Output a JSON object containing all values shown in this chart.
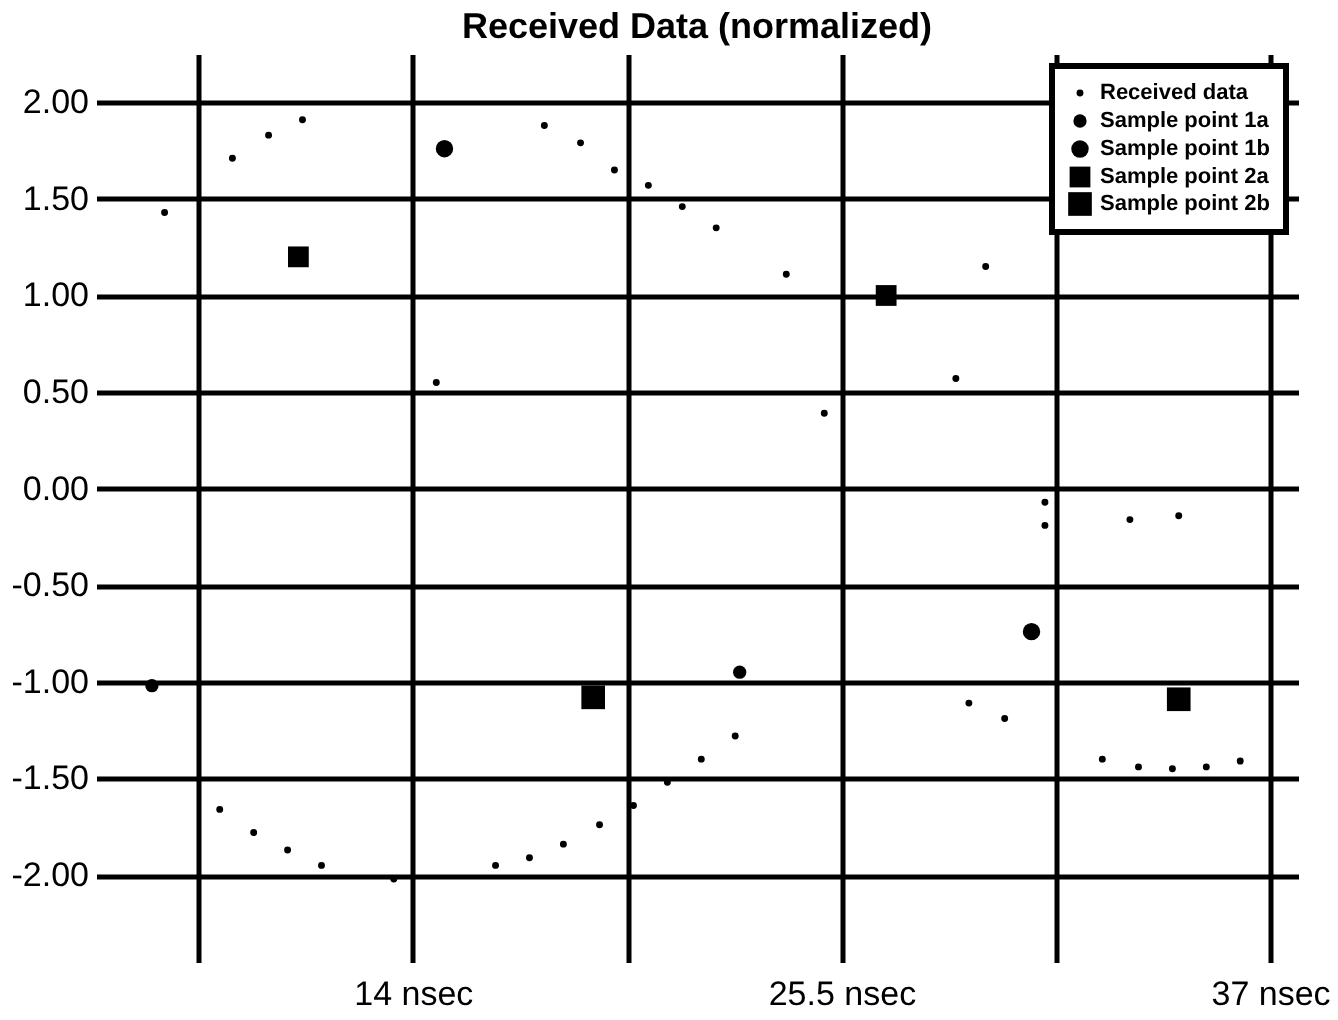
{
  "chart_data": {
    "type": "scatter",
    "title": "Received Data (normalized)",
    "xlim": [
      5.5,
      37.75
    ],
    "ylim": [
      -2.45,
      2.25
    ],
    "xticks": [
      {
        "value": 8.25,
        "label": null
      },
      {
        "value": 14,
        "label": "14 nsec"
      },
      {
        "value": 19.75,
        "label": null
      },
      {
        "value": 25.5,
        "label": "25.5 nsec"
      },
      {
        "value": 31.25,
        "label": null
      },
      {
        "value": 37,
        "label": "37 nsec"
      }
    ],
    "yticks": [
      {
        "value": 2,
        "label": "2.00"
      },
      {
        "value": 1.5,
        "label": "1.50"
      },
      {
        "value": 1,
        "label": "1.00"
      },
      {
        "value": 0.5,
        "label": "0.50"
      },
      {
        "value": 0,
        "label": "0.00"
      },
      {
        "value": -0.5,
        "label": "-0.50"
      },
      {
        "value": -1,
        "label": "-1.00"
      },
      {
        "value": -1.5,
        "label": "-1.50"
      },
      {
        "value": -2,
        "label": "-2.00"
      }
    ],
    "grid": true,
    "legend": "top right",
    "series": [
      {
        "name": "Received data",
        "color": "#000000",
        "marker": "circle",
        "x": [
          7.34,
          8.82,
          9.16,
          9.73,
          10.13,
          10.64,
          11.04,
          11.55,
          13.49,
          14.63,
          16.22,
          17.13,
          17.53,
          18.04,
          18.5,
          19.01,
          19.41,
          19.92,
          20.32,
          20.83,
          21.23,
          21.74,
          22.14,
          22.65,
          24.02,
          25.04,
          28.57,
          28.92,
          29.37,
          29.88,
          30.96,
          30.96,
          32.5,
          33.24,
          33.47,
          34.38,
          34.55,
          35.29,
          36.2
        ],
        "values": [
          1.43,
          -1.66,
          1.71,
          -1.78,
          1.83,
          -1.87,
          1.91,
          -1.95,
          -2.02,
          0.55,
          -1.95,
          -1.91,
          1.88,
          -1.84,
          1.79,
          -1.74,
          1.65,
          -1.64,
          1.57,
          -1.52,
          1.46,
          -1.4,
          1.35,
          -1.28,
          1.11,
          0.39,
          0.57,
          -1.11,
          1.15,
          -1.19,
          -0.07,
          -0.19,
          -1.4,
          -0.16,
          -1.44,
          -1.45,
          -0.14,
          -1.44,
          -1.41
        ]
      },
      {
        "name": "Sample point 1a",
        "color": "#000000",
        "marker": "circle",
        "x": [
          7.0,
          22.77
        ],
        "values": [
          -1.02,
          -0.95
        ]
      },
      {
        "name": "Sample point 1b",
        "color": "#000000",
        "marker": "circle",
        "x": [
          14.85,
          30.6
        ],
        "values": [
          1.76,
          -0.74
        ]
      },
      {
        "name": "Sample point 2a",
        "color": "#000000",
        "marker": "square",
        "x": [
          10.93,
          26.7
        ],
        "values": [
          1.2,
          1.0
        ]
      },
      {
        "name": "Sample point 2b",
        "color": "#000000",
        "marker": "square",
        "x": [
          18.84,
          34.55
        ],
        "values": [
          -1.08,
          -1.09
        ]
      }
    ]
  }
}
